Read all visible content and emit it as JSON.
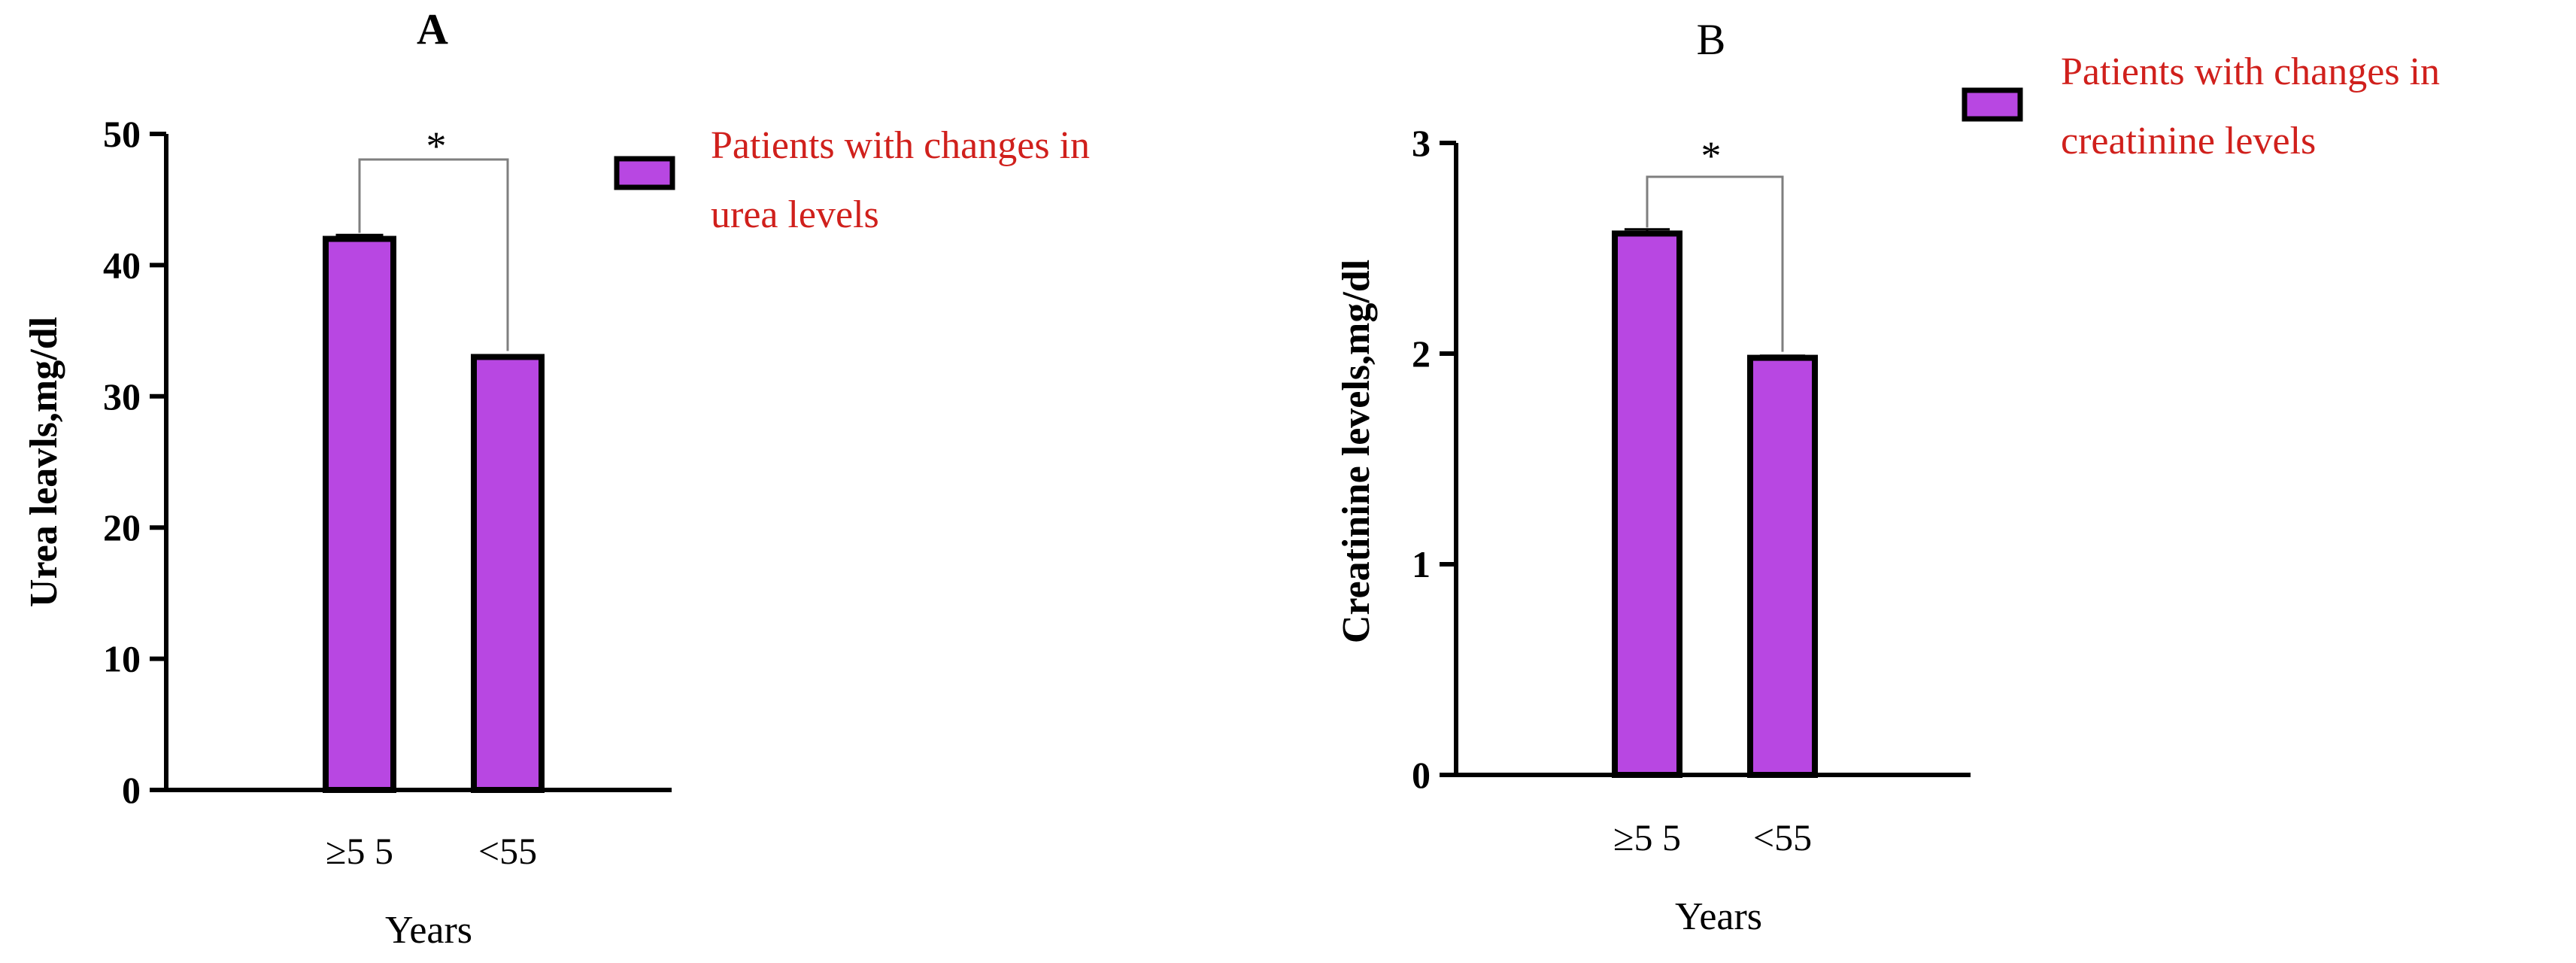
{
  "colors": {
    "bar_fill": "#B847E2",
    "bar_stroke": "#000000",
    "legend_text": "#D0201C",
    "axis": "#000000",
    "bracket": "#7f7f7f"
  },
  "chart_data": [
    {
      "panel_label": "A",
      "type": "bar",
      "categories": [
        "≥5 5",
        "<55"
      ],
      "values": [
        42,
        33
      ],
      "error": [
        0.3,
        0.1
      ],
      "series": [
        {
          "name": "Patients with changes in urea levels",
          "values": [
            42,
            33
          ]
        }
      ],
      "legend_lines": [
        "Patients with changes in",
        "urea levels"
      ],
      "xlabel": "Years",
      "ylabel": "Urea leavls,mg/dl",
      "ylim": [
        0,
        50
      ],
      "yticks": [
        "0",
        "10",
        "20",
        "30",
        "40",
        "50"
      ],
      "yticks_values": [
        0,
        10,
        20,
        30,
        40,
        50
      ],
      "significance": "*",
      "grid": false,
      "legend_position": "right"
    },
    {
      "panel_label": "B",
      "type": "bar",
      "categories": [
        "≥5 5",
        "<55"
      ],
      "values": [
        2.57,
        1.98
      ],
      "error": [
        0.02,
        0.01
      ],
      "series": [
        {
          "name": "Patients with changes in creatinine levels",
          "values": [
            2.57,
            1.98
          ]
        }
      ],
      "legend_lines": [
        "Patients with changes in",
        "creatinine levels"
      ],
      "xlabel": "Years",
      "ylabel": "Creatinine levels,mg/dl",
      "ylim": [
        0,
        3
      ],
      "yticks": [
        "0",
        "1",
        "2",
        "3"
      ],
      "yticks_values": [
        0,
        1,
        2,
        3
      ],
      "significance": "*",
      "grid": false,
      "legend_position": "top-right"
    }
  ]
}
